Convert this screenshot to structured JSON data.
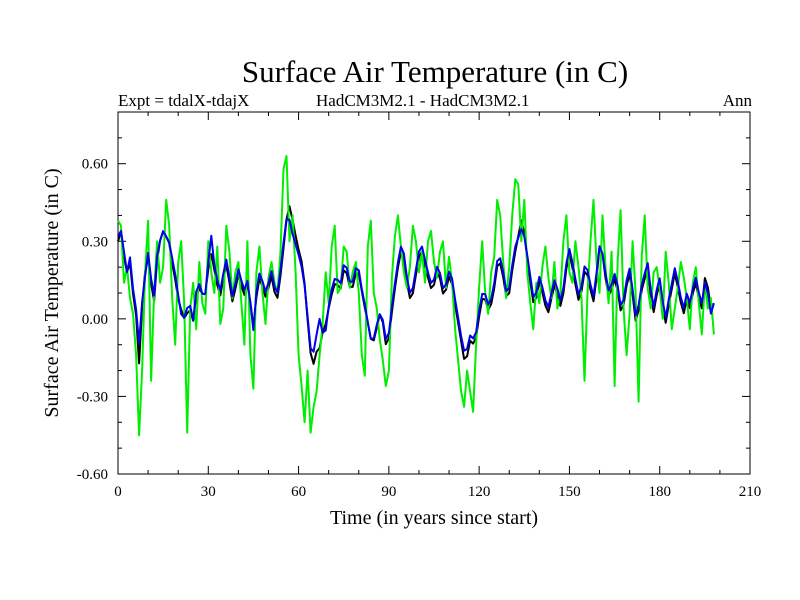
{
  "chart_data": {
    "type": "line",
    "title": "Surface Air Temperature (in C)",
    "subtitle_left": "Expt = tdalX-tdajX",
    "subtitle_center": "HadCM3M2.1 - HadCM3M2.1",
    "subtitle_right": "Ann",
    "xlabel": "Time (in years since start)",
    "ylabel": "Surface Air Temperature (in C)",
    "xlim": [
      0,
      210
    ],
    "ylim": [
      -0.6,
      0.8
    ],
    "xticks": [
      0,
      30,
      60,
      90,
      120,
      150,
      180,
      210
    ],
    "xtick_labels": [
      "0",
      "30",
      "60",
      "90",
      "120",
      "150",
      "180",
      "210"
    ],
    "yticks": [
      -0.6,
      -0.3,
      0.0,
      0.3,
      0.6
    ],
    "ytick_labels": [
      "-0.60",
      "-0.30",
      "0.00",
      "0.30",
      "0.60"
    ],
    "x_start": 0,
    "x_step": 1,
    "series": [
      {
        "name": "black",
        "color": "#000000",
        "values": [
          0.3,
          0.34,
          0.24,
          0.18,
          0.22,
          0.1,
          0.02,
          -0.18,
          0.04,
          0.18,
          0.24,
          0.14,
          0.06,
          0.22,
          0.3,
          0.34,
          0.32,
          0.3,
          0.22,
          0.16,
          0.08,
          0.04,
          0.0,
          0.02,
          0.04,
          -0.02,
          0.08,
          0.12,
          0.1,
          0.08,
          0.18,
          0.26,
          0.2,
          0.14,
          0.08,
          0.14,
          0.22,
          0.16,
          0.06,
          0.1,
          0.18,
          0.14,
          0.08,
          0.14,
          0.1,
          -0.06,
          0.06,
          0.16,
          0.14,
          0.08,
          0.1,
          0.18,
          0.12,
          0.06,
          0.14,
          0.24,
          0.36,
          0.45,
          0.4,
          0.34,
          0.28,
          0.24,
          0.18,
          0.04,
          -0.1,
          -0.2,
          -0.12,
          -0.14,
          -0.06,
          -0.04,
          0.02,
          0.08,
          0.12,
          0.16,
          0.08,
          0.18,
          0.2,
          0.14,
          0.1,
          0.16,
          0.2,
          0.14,
          0.06,
          0.02,
          -0.06,
          -0.1,
          -0.06,
          0.0,
          0.04,
          -0.08,
          -0.12,
          -0.02,
          0.08,
          0.16,
          0.24,
          0.28,
          0.18,
          0.1,
          0.06,
          0.14,
          0.2,
          0.28,
          0.24,
          0.18,
          0.14,
          0.1,
          0.16,
          0.2,
          0.12,
          0.08,
          0.14,
          0.18,
          0.1,
          0.02,
          -0.04,
          -0.12,
          -0.18,
          -0.12,
          -0.06,
          -0.12,
          -0.04,
          0.04,
          0.1,
          0.06,
          0.02,
          0.08,
          0.14,
          0.24,
          0.2,
          0.14,
          0.06,
          0.12,
          0.22,
          0.28,
          0.34,
          0.4,
          0.3,
          0.2,
          0.12,
          0.04,
          0.1,
          0.16,
          0.08,
          0.04,
          0.02,
          0.1,
          0.14,
          0.08,
          0.04,
          0.12,
          0.22,
          0.26,
          0.18,
          0.12,
          0.06,
          0.12,
          0.2,
          0.16,
          0.1,
          0.06,
          0.18,
          0.3,
          0.24,
          0.14,
          0.08,
          0.12,
          0.16,
          0.1,
          0.02,
          0.06,
          0.14,
          0.18,
          0.08,
          -0.02,
          0.04,
          0.12,
          0.16,
          0.2,
          0.08,
          0.02,
          0.1,
          0.14,
          0.04,
          -0.02,
          0.06,
          0.12,
          0.18,
          0.12,
          0.06,
          0.02,
          0.08,
          0.04,
          0.1,
          0.14,
          0.08,
          0.04,
          0.16,
          0.12,
          0.04,
          0.06
        ],
        "years": 199
      },
      {
        "name": "green",
        "color": "#00ee00",
        "values": [
          0.38,
          0.36,
          0.14,
          0.2,
          0.08,
          0.02,
          -0.14,
          -0.45,
          -0.2,
          0.18,
          0.38,
          -0.24,
          0.1,
          0.3,
          0.14,
          0.2,
          0.46,
          0.36,
          0.08,
          -0.1,
          0.22,
          0.3,
          0.06,
          -0.44,
          0.04,
          0.14,
          -0.04,
          0.22,
          0.06,
          0.02,
          0.3,
          0.18,
          0.1,
          0.28,
          -0.02,
          0.04,
          0.36,
          0.26,
          0.08,
          0.18,
          0.22,
          0.06,
          -0.1,
          0.3,
          -0.14,
          -0.27,
          0.18,
          0.28,
          0.1,
          -0.02,
          0.16,
          0.22,
          0.14,
          0.1,
          0.26,
          0.58,
          0.63,
          0.3,
          0.4,
          0.18,
          -0.14,
          -0.26,
          -0.4,
          -0.2,
          -0.44,
          -0.34,
          -0.28,
          -0.14,
          -0.02,
          0.18,
          0.06,
          0.28,
          0.36,
          0.1,
          0.12,
          0.28,
          0.26,
          0.12,
          0.18,
          0.22,
          0.1,
          -0.14,
          -0.22,
          0.28,
          0.38,
          0.1,
          0.04,
          -0.08,
          -0.16,
          -0.26,
          -0.2,
          0.16,
          0.32,
          0.4,
          0.28,
          0.18,
          0.12,
          0.2,
          0.36,
          0.3,
          0.18,
          0.26,
          0.14,
          0.3,
          0.34,
          0.22,
          0.16,
          0.26,
          0.3,
          0.12,
          0.24,
          0.14,
          -0.04,
          -0.16,
          -0.28,
          -0.34,
          -0.2,
          -0.28,
          -0.36,
          -0.1,
          0.12,
          0.3,
          0.1,
          0.02,
          0.18,
          0.24,
          0.46,
          0.4,
          0.22,
          0.08,
          0.2,
          0.4,
          0.54,
          0.52,
          0.3,
          0.46,
          0.18,
          0.06,
          -0.04,
          0.14,
          0.06,
          0.2,
          0.28,
          0.16,
          0.08,
          0.22,
          0.04,
          0.1,
          0.3,
          0.4,
          0.18,
          0.14,
          0.3,
          0.2,
          0.08,
          -0.24,
          0.1,
          0.3,
          0.46,
          0.22,
          0.1,
          0.4,
          0.2,
          0.06,
          0.26,
          -0.26,
          0.22,
          0.42,
          0.04,
          -0.14,
          0.02,
          0.3,
          0.1,
          -0.32,
          0.24,
          0.4,
          0.12,
          0.04,
          0.18,
          0.2,
          0.12,
          0.0,
          0.26,
          0.14,
          -0.04,
          0.04,
          0.12,
          0.22,
          0.16,
          0.08,
          -0.04,
          0.14,
          0.2,
          0.06,
          -0.06,
          0.14,
          0.04,
          0.08,
          -0.06
        ],
        "years": 199
      },
      {
        "name": "blue",
        "color": "#0000ee",
        "values": [
          0.32,
          0.34,
          0.26,
          0.18,
          0.24,
          0.12,
          0.04,
          -0.1,
          0.06,
          0.16,
          0.26,
          0.16,
          0.08,
          0.24,
          0.3,
          0.34,
          0.32,
          0.3,
          0.24,
          0.18,
          0.1,
          0.02,
          0.0,
          0.04,
          0.06,
          -0.02,
          0.1,
          0.14,
          0.1,
          0.08,
          0.2,
          0.34,
          0.22,
          0.16,
          0.1,
          0.16,
          0.24,
          0.18,
          0.08,
          0.12,
          0.2,
          0.16,
          0.1,
          0.16,
          0.1,
          -0.08,
          0.08,
          0.18,
          0.16,
          0.1,
          0.12,
          0.2,
          0.14,
          0.08,
          0.16,
          0.26,
          0.38,
          0.4,
          0.34,
          0.3,
          0.26,
          0.22,
          0.16,
          0.06,
          -0.1,
          -0.14,
          -0.1,
          0.02,
          -0.04,
          -0.08,
          0.02,
          0.1,
          0.14,
          0.18,
          0.1,
          0.2,
          0.22,
          0.16,
          0.12,
          0.18,
          0.22,
          0.14,
          0.08,
          0.02,
          -0.06,
          -0.1,
          -0.04,
          0.0,
          0.04,
          -0.06,
          -0.1,
          0.0,
          0.1,
          0.18,
          0.26,
          0.3,
          0.2,
          0.12,
          0.08,
          0.16,
          0.22,
          0.3,
          0.26,
          0.2,
          0.16,
          0.12,
          0.18,
          0.22,
          0.14,
          0.1,
          0.16,
          0.2,
          0.12,
          0.04,
          -0.02,
          -0.1,
          -0.14,
          -0.1,
          -0.04,
          -0.1,
          -0.02,
          0.06,
          0.12,
          0.08,
          0.04,
          0.1,
          0.16,
          0.26,
          0.22,
          0.16,
          0.08,
          0.14,
          0.24,
          0.3,
          0.32,
          0.36,
          0.3,
          0.22,
          0.14,
          0.06,
          0.12,
          0.18,
          0.1,
          0.06,
          0.04,
          0.12,
          0.16,
          0.1,
          0.06,
          0.14,
          0.24,
          0.28,
          0.2,
          0.14,
          0.08,
          0.14,
          0.22,
          0.18,
          0.12,
          0.08,
          0.2,
          0.3,
          0.24,
          0.16,
          0.1,
          0.14,
          0.18,
          0.12,
          0.04,
          0.08,
          0.16,
          0.2,
          0.1,
          0.0,
          0.06,
          0.14,
          0.18,
          0.22,
          0.1,
          0.04,
          0.12,
          0.16,
          0.06,
          0.0,
          0.08,
          0.14,
          0.2,
          0.14,
          0.08,
          0.04,
          0.1,
          0.06,
          0.12,
          0.16,
          0.1,
          0.06,
          0.14,
          0.1,
          0.02,
          0.06
        ],
        "years": 199
      }
    ]
  }
}
